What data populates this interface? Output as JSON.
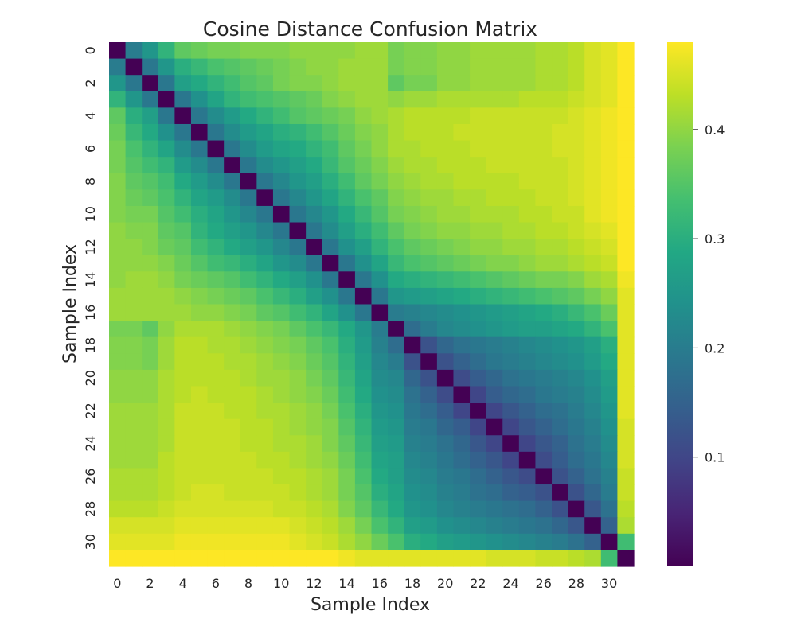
{
  "chart_data": {
    "type": "heatmap",
    "title": "Cosine Distance Confusion Matrix",
    "xlabel": "Sample Index",
    "ylabel": "Sample Index",
    "n": 32,
    "x_tick_labels": [
      "0",
      "2",
      "4",
      "6",
      "8",
      "10",
      "12",
      "14",
      "16",
      "18",
      "20",
      "22",
      "24",
      "26",
      "28",
      "30"
    ],
    "y_tick_labels": [
      "0",
      "2",
      "4",
      "6",
      "8",
      "10",
      "12",
      "14",
      "16",
      "18",
      "20",
      "22",
      "24",
      "26",
      "28",
      "30"
    ],
    "colormap": "viridis",
    "colorbar": {
      "range": [
        0.0,
        0.48
      ],
      "ticks": [
        0.1,
        0.2,
        0.3,
        0.4
      ],
      "tick_labels": [
        "0.1",
        "0.2",
        "0.3",
        "0.4"
      ]
    },
    "values": [
      [
        0.0,
        0.2,
        0.25,
        0.31,
        0.36,
        0.37,
        0.38,
        0.38,
        0.39,
        0.39,
        0.39,
        0.4,
        0.4,
        0.4,
        0.4,
        0.41,
        0.41,
        0.38,
        0.39,
        0.39,
        0.4,
        0.4,
        0.41,
        0.41,
        0.41,
        0.41,
        0.42,
        0.42,
        0.43,
        0.45,
        0.46,
        0.49
      ],
      [
        0.2,
        0.0,
        0.19,
        0.25,
        0.3,
        0.32,
        0.34,
        0.35,
        0.36,
        0.37,
        0.38,
        0.39,
        0.4,
        0.4,
        0.41,
        0.41,
        0.41,
        0.38,
        0.39,
        0.39,
        0.4,
        0.4,
        0.41,
        0.41,
        0.41,
        0.41,
        0.42,
        0.42,
        0.43,
        0.45,
        0.46,
        0.49
      ],
      [
        0.25,
        0.19,
        0.0,
        0.19,
        0.27,
        0.29,
        0.31,
        0.33,
        0.35,
        0.36,
        0.38,
        0.39,
        0.39,
        0.4,
        0.41,
        0.41,
        0.41,
        0.36,
        0.38,
        0.38,
        0.4,
        0.4,
        0.41,
        0.41,
        0.41,
        0.41,
        0.42,
        0.42,
        0.43,
        0.45,
        0.46,
        0.49
      ],
      [
        0.31,
        0.25,
        0.19,
        0.0,
        0.19,
        0.24,
        0.28,
        0.31,
        0.33,
        0.34,
        0.35,
        0.36,
        0.37,
        0.39,
        0.4,
        0.41,
        0.41,
        0.4,
        0.41,
        0.41,
        0.42,
        0.42,
        0.42,
        0.42,
        0.42,
        0.43,
        0.43,
        0.43,
        0.44,
        0.45,
        0.46,
        0.49
      ],
      [
        0.36,
        0.3,
        0.27,
        0.19,
        0.0,
        0.19,
        0.23,
        0.26,
        0.29,
        0.31,
        0.33,
        0.35,
        0.36,
        0.37,
        0.38,
        0.4,
        0.41,
        0.42,
        0.43,
        0.43,
        0.43,
        0.43,
        0.44,
        0.44,
        0.44,
        0.44,
        0.44,
        0.44,
        0.45,
        0.46,
        0.47,
        0.49
      ],
      [
        0.37,
        0.32,
        0.29,
        0.24,
        0.19,
        0.0,
        0.19,
        0.23,
        0.26,
        0.28,
        0.3,
        0.31,
        0.33,
        0.35,
        0.37,
        0.39,
        0.4,
        0.42,
        0.43,
        0.43,
        0.43,
        0.44,
        0.44,
        0.44,
        0.44,
        0.44,
        0.44,
        0.45,
        0.45,
        0.46,
        0.47,
        0.49
      ],
      [
        0.38,
        0.34,
        0.31,
        0.28,
        0.23,
        0.19,
        0.0,
        0.19,
        0.23,
        0.26,
        0.28,
        0.29,
        0.31,
        0.33,
        0.36,
        0.38,
        0.4,
        0.42,
        0.42,
        0.43,
        0.43,
        0.43,
        0.44,
        0.44,
        0.44,
        0.44,
        0.44,
        0.45,
        0.45,
        0.46,
        0.47,
        0.49
      ],
      [
        0.38,
        0.35,
        0.33,
        0.31,
        0.26,
        0.23,
        0.19,
        0.0,
        0.19,
        0.23,
        0.25,
        0.27,
        0.29,
        0.32,
        0.35,
        0.37,
        0.39,
        0.41,
        0.42,
        0.42,
        0.43,
        0.43,
        0.43,
        0.44,
        0.44,
        0.44,
        0.44,
        0.44,
        0.45,
        0.46,
        0.47,
        0.49
      ],
      [
        0.39,
        0.36,
        0.35,
        0.33,
        0.29,
        0.26,
        0.23,
        0.19,
        0.0,
        0.19,
        0.22,
        0.25,
        0.27,
        0.3,
        0.33,
        0.36,
        0.38,
        0.4,
        0.41,
        0.42,
        0.42,
        0.43,
        0.43,
        0.43,
        0.43,
        0.44,
        0.44,
        0.44,
        0.45,
        0.46,
        0.47,
        0.49
      ],
      [
        0.39,
        0.37,
        0.36,
        0.34,
        0.31,
        0.28,
        0.26,
        0.23,
        0.19,
        0.0,
        0.19,
        0.22,
        0.25,
        0.28,
        0.31,
        0.34,
        0.36,
        0.39,
        0.4,
        0.41,
        0.41,
        0.42,
        0.42,
        0.43,
        0.43,
        0.43,
        0.44,
        0.44,
        0.45,
        0.46,
        0.47,
        0.49
      ],
      [
        0.39,
        0.38,
        0.38,
        0.35,
        0.33,
        0.3,
        0.28,
        0.25,
        0.22,
        0.19,
        0.0,
        0.19,
        0.22,
        0.25,
        0.29,
        0.32,
        0.35,
        0.38,
        0.39,
        0.4,
        0.41,
        0.41,
        0.42,
        0.42,
        0.42,
        0.43,
        0.43,
        0.44,
        0.44,
        0.46,
        0.47,
        0.49
      ],
      [
        0.4,
        0.39,
        0.39,
        0.36,
        0.35,
        0.31,
        0.29,
        0.27,
        0.25,
        0.22,
        0.19,
        0.0,
        0.19,
        0.23,
        0.27,
        0.3,
        0.33,
        0.36,
        0.38,
        0.39,
        0.4,
        0.4,
        0.41,
        0.41,
        0.42,
        0.42,
        0.43,
        0.43,
        0.44,
        0.45,
        0.46,
        0.49
      ],
      [
        0.4,
        0.4,
        0.39,
        0.37,
        0.36,
        0.33,
        0.31,
        0.29,
        0.27,
        0.25,
        0.22,
        0.19,
        0.0,
        0.19,
        0.24,
        0.27,
        0.31,
        0.34,
        0.36,
        0.37,
        0.38,
        0.39,
        0.4,
        0.4,
        0.41,
        0.41,
        0.42,
        0.42,
        0.43,
        0.44,
        0.45,
        0.48
      ],
      [
        0.4,
        0.4,
        0.4,
        0.39,
        0.37,
        0.35,
        0.33,
        0.32,
        0.3,
        0.28,
        0.25,
        0.23,
        0.19,
        0.0,
        0.19,
        0.24,
        0.28,
        0.32,
        0.34,
        0.35,
        0.36,
        0.37,
        0.38,
        0.39,
        0.39,
        0.4,
        0.41,
        0.41,
        0.42,
        0.43,
        0.44,
        0.48
      ],
      [
        0.4,
        0.41,
        0.41,
        0.4,
        0.38,
        0.37,
        0.36,
        0.35,
        0.33,
        0.31,
        0.29,
        0.27,
        0.24,
        0.19,
        0.0,
        0.19,
        0.24,
        0.29,
        0.3,
        0.31,
        0.32,
        0.33,
        0.34,
        0.35,
        0.36,
        0.37,
        0.38,
        0.38,
        0.39,
        0.41,
        0.42,
        0.47
      ],
      [
        0.41,
        0.41,
        0.41,
        0.41,
        0.4,
        0.39,
        0.38,
        0.37,
        0.36,
        0.34,
        0.32,
        0.3,
        0.27,
        0.24,
        0.19,
        0.0,
        0.19,
        0.25,
        0.26,
        0.27,
        0.28,
        0.29,
        0.3,
        0.31,
        0.32,
        0.33,
        0.34,
        0.35,
        0.36,
        0.38,
        0.4,
        0.46
      ],
      [
        0.41,
        0.41,
        0.41,
        0.41,
        0.41,
        0.4,
        0.4,
        0.39,
        0.38,
        0.36,
        0.35,
        0.33,
        0.31,
        0.28,
        0.24,
        0.19,
        0.0,
        0.2,
        0.21,
        0.22,
        0.23,
        0.24,
        0.25,
        0.26,
        0.27,
        0.28,
        0.29,
        0.3,
        0.32,
        0.34,
        0.37,
        0.46
      ],
      [
        0.38,
        0.38,
        0.36,
        0.4,
        0.42,
        0.42,
        0.42,
        0.41,
        0.4,
        0.39,
        0.38,
        0.36,
        0.34,
        0.32,
        0.29,
        0.25,
        0.2,
        0.0,
        0.17,
        0.2,
        0.22,
        0.23,
        0.24,
        0.25,
        0.26,
        0.27,
        0.27,
        0.28,
        0.29,
        0.31,
        0.34,
        0.46
      ],
      [
        0.39,
        0.39,
        0.38,
        0.41,
        0.43,
        0.43,
        0.42,
        0.42,
        0.41,
        0.4,
        0.39,
        0.38,
        0.36,
        0.34,
        0.3,
        0.26,
        0.21,
        0.17,
        0.0,
        0.12,
        0.16,
        0.18,
        0.19,
        0.2,
        0.21,
        0.22,
        0.23,
        0.24,
        0.25,
        0.27,
        0.3,
        0.46
      ],
      [
        0.39,
        0.39,
        0.38,
        0.41,
        0.43,
        0.43,
        0.43,
        0.42,
        0.42,
        0.41,
        0.4,
        0.39,
        0.37,
        0.35,
        0.31,
        0.27,
        0.22,
        0.2,
        0.12,
        0.0,
        0.12,
        0.15,
        0.17,
        0.19,
        0.2,
        0.21,
        0.22,
        0.23,
        0.24,
        0.26,
        0.29,
        0.46
      ],
      [
        0.4,
        0.4,
        0.4,
        0.42,
        0.43,
        0.43,
        0.43,
        0.43,
        0.42,
        0.41,
        0.41,
        0.4,
        0.38,
        0.36,
        0.32,
        0.28,
        0.23,
        0.22,
        0.16,
        0.12,
        0.0,
        0.11,
        0.14,
        0.16,
        0.18,
        0.19,
        0.2,
        0.21,
        0.22,
        0.24,
        0.27,
        0.46
      ],
      [
        0.4,
        0.4,
        0.4,
        0.42,
        0.43,
        0.44,
        0.43,
        0.43,
        0.43,
        0.42,
        0.41,
        0.4,
        0.39,
        0.37,
        0.33,
        0.29,
        0.24,
        0.23,
        0.18,
        0.15,
        0.11,
        0.0,
        0.1,
        0.14,
        0.16,
        0.17,
        0.19,
        0.2,
        0.21,
        0.23,
        0.26,
        0.46
      ],
      [
        0.41,
        0.41,
        0.41,
        0.42,
        0.44,
        0.44,
        0.44,
        0.43,
        0.43,
        0.42,
        0.42,
        0.41,
        0.4,
        0.38,
        0.34,
        0.3,
        0.25,
        0.24,
        0.19,
        0.17,
        0.14,
        0.1,
        0.0,
        0.1,
        0.13,
        0.15,
        0.17,
        0.18,
        0.2,
        0.22,
        0.25,
        0.46
      ],
      [
        0.41,
        0.41,
        0.41,
        0.42,
        0.44,
        0.44,
        0.44,
        0.44,
        0.43,
        0.43,
        0.42,
        0.41,
        0.4,
        0.39,
        0.35,
        0.31,
        0.26,
        0.25,
        0.2,
        0.19,
        0.16,
        0.14,
        0.1,
        0.0,
        0.1,
        0.13,
        0.15,
        0.17,
        0.19,
        0.21,
        0.24,
        0.45
      ],
      [
        0.41,
        0.41,
        0.41,
        0.42,
        0.44,
        0.44,
        0.44,
        0.44,
        0.43,
        0.43,
        0.42,
        0.42,
        0.41,
        0.39,
        0.36,
        0.32,
        0.27,
        0.26,
        0.21,
        0.2,
        0.18,
        0.16,
        0.13,
        0.1,
        0.0,
        0.1,
        0.13,
        0.15,
        0.18,
        0.2,
        0.23,
        0.45
      ],
      [
        0.41,
        0.41,
        0.41,
        0.43,
        0.44,
        0.44,
        0.44,
        0.44,
        0.44,
        0.43,
        0.43,
        0.42,
        0.41,
        0.4,
        0.37,
        0.33,
        0.28,
        0.27,
        0.22,
        0.21,
        0.19,
        0.17,
        0.15,
        0.13,
        0.1,
        0.0,
        0.11,
        0.14,
        0.17,
        0.19,
        0.22,
        0.45
      ],
      [
        0.42,
        0.42,
        0.42,
        0.43,
        0.44,
        0.44,
        0.44,
        0.44,
        0.44,
        0.44,
        0.43,
        0.43,
        0.42,
        0.41,
        0.38,
        0.34,
        0.29,
        0.27,
        0.23,
        0.22,
        0.2,
        0.19,
        0.17,
        0.15,
        0.13,
        0.11,
        0.0,
        0.12,
        0.15,
        0.18,
        0.21,
        0.44
      ],
      [
        0.42,
        0.42,
        0.42,
        0.43,
        0.44,
        0.45,
        0.45,
        0.44,
        0.44,
        0.44,
        0.44,
        0.43,
        0.42,
        0.41,
        0.38,
        0.35,
        0.3,
        0.28,
        0.24,
        0.23,
        0.21,
        0.2,
        0.18,
        0.17,
        0.15,
        0.14,
        0.12,
        0.0,
        0.12,
        0.16,
        0.2,
        0.44
      ],
      [
        0.43,
        0.43,
        0.43,
        0.44,
        0.45,
        0.45,
        0.45,
        0.45,
        0.45,
        0.45,
        0.44,
        0.44,
        0.43,
        0.42,
        0.39,
        0.36,
        0.32,
        0.29,
        0.25,
        0.24,
        0.22,
        0.21,
        0.2,
        0.19,
        0.18,
        0.17,
        0.15,
        0.12,
        0.0,
        0.13,
        0.18,
        0.43
      ],
      [
        0.45,
        0.45,
        0.45,
        0.45,
        0.46,
        0.46,
        0.46,
        0.46,
        0.46,
        0.46,
        0.46,
        0.45,
        0.44,
        0.43,
        0.41,
        0.38,
        0.34,
        0.31,
        0.27,
        0.26,
        0.24,
        0.23,
        0.22,
        0.21,
        0.2,
        0.19,
        0.18,
        0.16,
        0.13,
        0.0,
        0.15,
        0.42
      ],
      [
        0.46,
        0.46,
        0.46,
        0.46,
        0.47,
        0.47,
        0.47,
        0.47,
        0.47,
        0.47,
        0.47,
        0.46,
        0.45,
        0.44,
        0.42,
        0.4,
        0.37,
        0.34,
        0.3,
        0.29,
        0.27,
        0.26,
        0.25,
        0.24,
        0.23,
        0.22,
        0.21,
        0.2,
        0.18,
        0.15,
        0.0,
        0.33
      ],
      [
        0.49,
        0.49,
        0.49,
        0.49,
        0.49,
        0.49,
        0.49,
        0.49,
        0.49,
        0.49,
        0.49,
        0.49,
        0.48,
        0.48,
        0.47,
        0.46,
        0.46,
        0.46,
        0.46,
        0.46,
        0.46,
        0.46,
        0.46,
        0.45,
        0.45,
        0.45,
        0.44,
        0.44,
        0.43,
        0.42,
        0.33,
        0.0
      ]
    ]
  }
}
